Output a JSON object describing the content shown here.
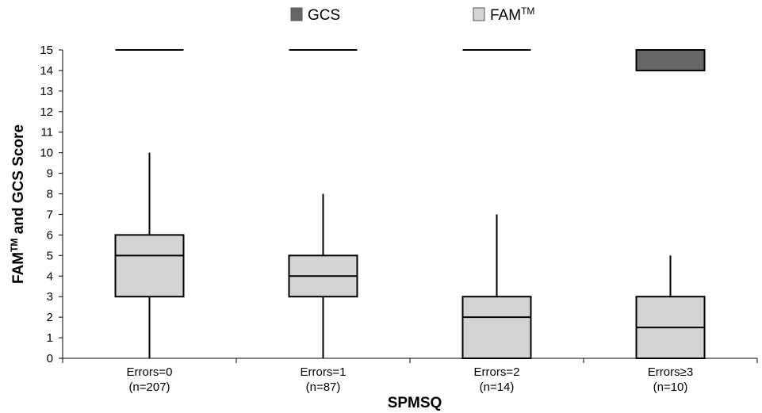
{
  "chart_data": {
    "type": "box",
    "xlabel": "SPMSQ",
    "ylabel": {
      "prefix": "FAM",
      "superscript": "TM",
      "suffix": " and GCS Score"
    },
    "ylim": [
      0,
      15
    ],
    "yticks": [
      "0",
      "1",
      "2",
      "3",
      "4",
      "5",
      "6",
      "7",
      "8",
      "9",
      "10",
      "11",
      "12",
      "13",
      "14",
      "15"
    ],
    "grid": false,
    "legend_position": "top-center",
    "categories": [
      {
        "label": "Errors=0",
        "n": "(n=207)"
      },
      {
        "label": "Errors=1",
        "n": "(n=87)"
      },
      {
        "label": "Errors=2",
        "n": "(n=14)"
      },
      {
        "label": "Errors≥3",
        "n": "(n=10)"
      }
    ],
    "series": [
      {
        "name": "GCS",
        "superscript": "",
        "color": "#666666",
        "boxes": [
          {
            "min": 15,
            "q1": 15,
            "median": 15,
            "q3": 15,
            "max": 15
          },
          {
            "min": 15,
            "q1": 15,
            "median": 15,
            "q3": 15,
            "max": 15
          },
          {
            "min": 15,
            "q1": 15,
            "median": 15,
            "q3": 15,
            "max": 15
          },
          {
            "min": 14,
            "q1": 14,
            "median": 15,
            "q3": 15,
            "max": 15
          }
        ]
      },
      {
        "name": "FAM",
        "superscript": "TM",
        "color": "#d4d4d4",
        "boxes": [
          {
            "min": 0,
            "q1": 3,
            "median": 5,
            "q3": 6,
            "max": 10
          },
          {
            "min": 0,
            "q1": 3,
            "median": 4,
            "q3": 5,
            "max": 8
          },
          {
            "min": 0,
            "q1": 0,
            "median": 2,
            "q3": 3,
            "max": 7
          },
          {
            "min": 0,
            "q1": 0,
            "median": 1.5,
            "q3": 3,
            "max": 5
          }
        ]
      }
    ]
  }
}
